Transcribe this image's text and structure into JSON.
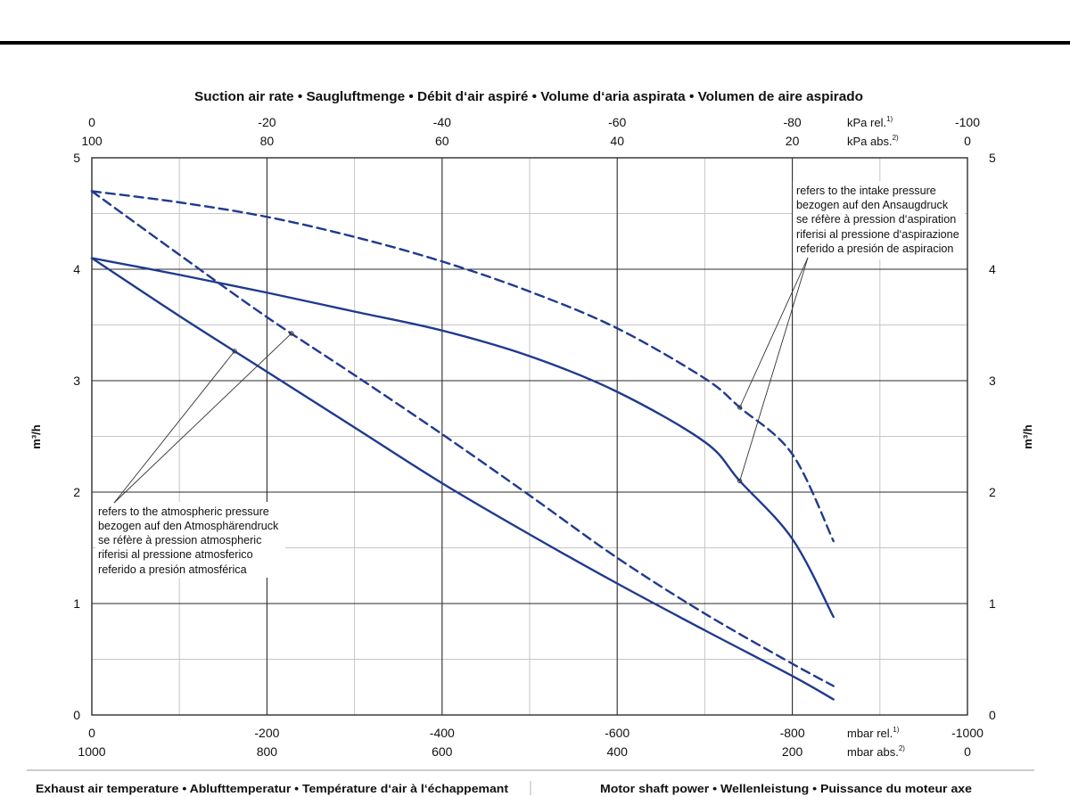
{
  "chart_data": {
    "type": "line",
    "title": "Suction air rate • Saugluftmenge • Débit d‘air aspiré • Volume d‘aria aspirata • Volumen de aire aspirado",
    "x_axes": {
      "top": [
        {
          "unit": "kPa rel.",
          "note": "1)",
          "ticks": [
            0,
            -20,
            -40,
            -60,
            -80,
            -100
          ]
        },
        {
          "unit": "kPa abs.",
          "note": "2)",
          "ticks": [
            100,
            80,
            60,
            40,
            20,
            0
          ]
        }
      ],
      "bottom": [
        {
          "unit": "mbar rel.",
          "note": "1)",
          "ticks": [
            0,
            -200,
            -400,
            -600,
            -800,
            -1000
          ]
        },
        {
          "unit": "mbar abs.",
          "note": "2)",
          "ticks": [
            1000,
            800,
            600,
            400,
            200,
            0
          ]
        }
      ]
    },
    "xlim": [
      0,
      -1000
    ],
    "ylabel": "m³/h",
    "y_ticks": [
      0,
      1,
      2,
      3,
      4,
      5
    ],
    "ylim": [
      0,
      5
    ],
    "grid": true,
    "series": [
      {
        "line_style": "solid",
        "color": "#1f3a8f",
        "x": [
          0,
          -100,
          -200,
          -300,
          -400,
          -500,
          -600,
          -700,
          -740,
          -800,
          -847
        ],
        "y": [
          4.1,
          3.95,
          3.79,
          3.62,
          3.45,
          3.22,
          2.9,
          2.45,
          2.1,
          1.58,
          0.88
        ]
      },
      {
        "line_style": "dashed",
        "color": "#1f3a8f",
        "x": [
          0,
          -100,
          -200,
          -300,
          -400,
          -500,
          -600,
          -700,
          -740,
          -800,
          -847
        ],
        "y": [
          4.7,
          4.6,
          4.47,
          4.29,
          4.07,
          3.8,
          3.47,
          3.02,
          2.76,
          2.34,
          1.56
        ]
      },
      {
        "line_style": "dashed",
        "color": "#1f3a8f",
        "x": [
          0,
          -100,
          -200,
          -300,
          -400,
          -500,
          -600,
          -700,
          -800,
          -847
        ],
        "y": [
          4.7,
          4.13,
          3.57,
          3.05,
          2.52,
          1.97,
          1.41,
          0.91,
          0.46,
          0.26
        ]
      },
      {
        "line_style": "solid",
        "color": "#1f3a8f",
        "x": [
          0,
          -100,
          -200,
          -300,
          -400,
          -500,
          -600,
          -700,
          -800,
          -847
        ],
        "y": [
          4.1,
          3.58,
          3.08,
          2.58,
          2.08,
          1.62,
          1.18,
          0.76,
          0.35,
          0.14
        ]
      }
    ],
    "annotations": [
      {
        "lines": [
          "refers to the intake pressure",
          "bezogen auf den Ansaugdruck",
          "se réfère à pression d‘aspiration",
          "riferisi al pressione d‘aspirazione",
          "referido a presión de aspiracion"
        ]
      },
      {
        "lines": [
          "refers to the atmospheric pressure",
          "bezogen auf den Atmosphärendruck",
          "se réfère à pression atmospheric",
          "riferisi al pressione atmosferico",
          "referido a presión atmosférica"
        ]
      }
    ]
  },
  "footer": {
    "left": "Exhaust air temperature • Ablufttemperatur • Température d‘air à l‘échappemant",
    "right": "Motor shaft power • Wellenleistung • Puissance du moteur axe"
  }
}
